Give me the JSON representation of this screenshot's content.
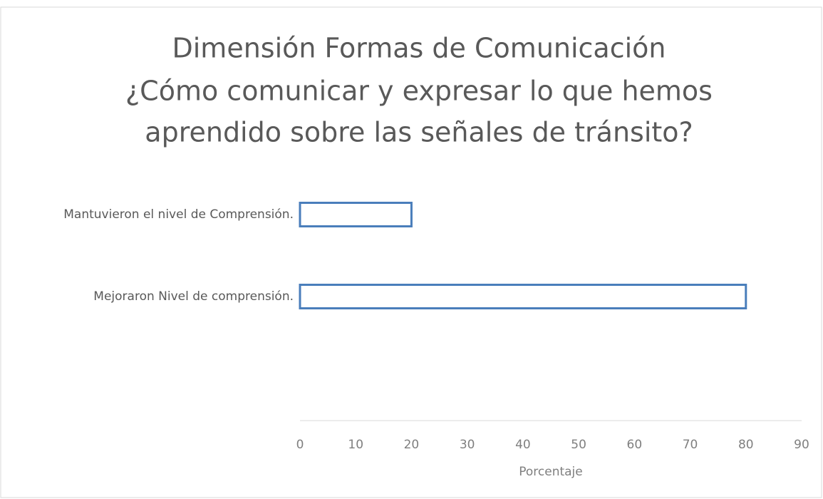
{
  "chart_data": {
    "type": "bar",
    "orientation": "horizontal",
    "title": [
      "Dimensión Formas de Comunicación",
      "¿Cómo comunicar y expresar  lo que hemos",
      "aprendido sobre las señales de tránsito?"
    ],
    "categories": [
      "Mantuvieron el nivel de Comprensión.",
      "Mejoraron Nivel de comprensión."
    ],
    "values": [
      20,
      80
    ],
    "color": "#4a7ebb",
    "x_label": "Porcentaje",
    "xlim": [
      0,
      90
    ],
    "xticks": [
      0,
      10,
      20,
      30,
      40,
      50,
      60,
      70,
      80,
      90
    ],
    "grid": false
  }
}
